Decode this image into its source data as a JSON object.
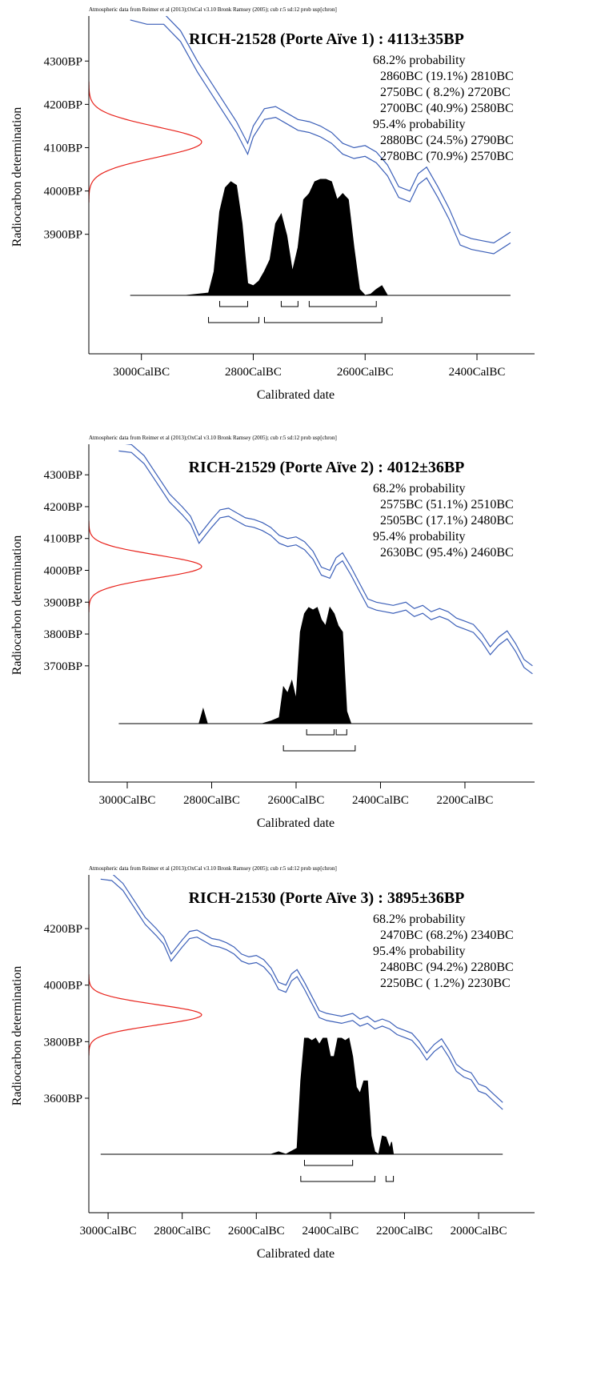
{
  "chart_data": [
    {
      "type": "calibration",
      "note": "Atmospheric data from Reimer et al (2013);OxCal v3.10 Bronk Ramsey (2005); cub r:5 sd:12 prob usp[chron]",
      "title": "RICH-21528 (Porte Aïve 1) : 4113±35BP",
      "xlabel": "Calibrated date",
      "ylabel": "Radiocarbon determination",
      "xlim": [
        3094,
        2297
      ],
      "ylim": [
        3624,
        4404
      ],
      "xticks": [
        {
          "value": 3000,
          "label": "3000CalBC"
        },
        {
          "value": 2800,
          "label": "2800CalBC"
        },
        {
          "value": 2600,
          "label": "2600CalBC"
        },
        {
          "value": 2400,
          "label": "2400CalBC"
        }
      ],
      "yticks": [
        {
          "value": 4300,
          "label": "4300BP"
        },
        {
          "value": 4200,
          "label": "4200BP"
        },
        {
          "value": 4100,
          "label": "4100BP"
        },
        {
          "value": 4000,
          "label": "4000BP"
        },
        {
          "value": 3900,
          "label": "3900BP"
        }
      ],
      "measurement": {
        "mean": 4113,
        "error": 35,
        "color": "#e8231c"
      },
      "curve": {
        "color": "#3b5fb8",
        "x": [
          3020,
          2990,
          2960,
          2930,
          2900,
          2870,
          2850,
          2830,
          2810,
          2800,
          2780,
          2760,
          2740,
          2720,
          2700,
          2680,
          2660,
          2640,
          2620,
          2600,
          2580,
          2560,
          2540,
          2520,
          2505,
          2490,
          2470,
          2450,
          2430,
          2410,
          2390,
          2370,
          2340
        ],
        "upper": [
          4420,
          4410,
          4410,
          4370,
          4300,
          4240,
          4200,
          4160,
          4110,
          4150,
          4190,
          4195,
          4180,
          4165,
          4160,
          4150,
          4135,
          4110,
          4100,
          4105,
          4090,
          4060,
          4010,
          4000,
          4040,
          4055,
          4010,
          3960,
          3900,
          3890,
          3885,
          3880,
          3905
        ],
        "lower": [
          4395,
          4385,
          4385,
          4345,
          4275,
          4215,
          4175,
          4135,
          4085,
          4125,
          4165,
          4170,
          4155,
          4140,
          4135,
          4125,
          4110,
          4085,
          4075,
          4080,
          4065,
          4035,
          3985,
          3975,
          4015,
          4030,
          3985,
          3935,
          3875,
          3865,
          3860,
          3855,
          3880
        ]
      },
      "distribution": {
        "color": "#000000",
        "x": [
          3020,
          2920,
          2880,
          2870,
          2860,
          2850,
          2840,
          2830,
          2820,
          2810,
          2800,
          2790,
          2780,
          2770,
          2760,
          2750,
          2740,
          2730,
          2720,
          2710,
          2700,
          2690,
          2680,
          2670,
          2660,
          2650,
          2640,
          2630,
          2620,
          2610,
          2600,
          2590,
          2580,
          2570,
          2560,
          2340
        ],
        "values": [
          0,
          0,
          2,
          20,
          70,
          90,
          95,
          92,
          60,
          10,
          8,
          12,
          20,
          30,
          60,
          68,
          50,
          20,
          40,
          80,
          85,
          95,
          97,
          97,
          95,
          80,
          85,
          80,
          40,
          5,
          0,
          1,
          5,
          8,
          0,
          0
        ]
      },
      "ranges": [
        {
          "label": "68.2% probability",
          "items": [
            {
              "text": "2860BC (19.1%) 2810BC",
              "from": 2860,
              "to": 2810
            },
            {
              "text": "2750BC ( 8.2%) 2720BC",
              "from": 2750,
              "to": 2720
            },
            {
              "text": "2700BC (40.9%) 2580BC",
              "from": 2700,
              "to": 2580
            }
          ]
        },
        {
          "label": "95.4% probability",
          "items": [
            {
              "text": "2880BC (24.5%) 2790BC",
              "from": 2880,
              "to": 2790
            },
            {
              "text": "2780BC (70.9%) 2570BC",
              "from": 2780,
              "to": 2570
            }
          ]
        }
      ]
    },
    {
      "type": "calibration",
      "note": "Atmospheric data from Reimer et al (2013);OxCal v3.10 Bronk Ramsey (2005); cub r:5 sd:12 prob usp[chron]",
      "title": "RICH-21529 (Porte Aïve 2) : 4012±36BP",
      "xlabel": "Calibrated date",
      "ylabel": "Radiocarbon determination",
      "xlim": [
        3091,
        2035
      ],
      "ylim": [
        3335,
        4396
      ],
      "xticks": [
        {
          "value": 3000,
          "label": "3000CalBC"
        },
        {
          "value": 2800,
          "label": "2800CalBC"
        },
        {
          "value": 2600,
          "label": "2600CalBC"
        },
        {
          "value": 2400,
          "label": "2400CalBC"
        },
        {
          "value": 2200,
          "label": "2200CalBC"
        }
      ],
      "yticks": [
        {
          "value": 4300,
          "label": "4300BP"
        },
        {
          "value": 4200,
          "label": "4200BP"
        },
        {
          "value": 4100,
          "label": "4100BP"
        },
        {
          "value": 4000,
          "label": "4000BP"
        },
        {
          "value": 3900,
          "label": "3900BP"
        },
        {
          "value": 3800,
          "label": "3800BP"
        },
        {
          "value": 3700,
          "label": "3700BP"
        }
      ],
      "measurement": {
        "mean": 4012,
        "error": 36,
        "color": "#e8231c"
      },
      "curve": {
        "color": "#3b5fb8",
        "x": [
          3020,
          2990,
          2960,
          2930,
          2900,
          2870,
          2850,
          2830,
          2800,
          2780,
          2760,
          2740,
          2720,
          2700,
          2680,
          2660,
          2640,
          2620,
          2600,
          2580,
          2560,
          2540,
          2520,
          2505,
          2490,
          2470,
          2450,
          2430,
          2410,
          2390,
          2370,
          2340,
          2320,
          2300,
          2280,
          2260,
          2240,
          2220,
          2200,
          2180,
          2160,
          2140,
          2120,
          2100,
          2080,
          2060,
          2040
        ],
        "upper": [
          4400,
          4395,
          4360,
          4300,
          4240,
          4200,
          4170,
          4110,
          4160,
          4190,
          4195,
          4180,
          4165,
          4160,
          4150,
          4135,
          4110,
          4100,
          4105,
          4090,
          4060,
          4010,
          4000,
          4040,
          4055,
          4010,
          3960,
          3910,
          3900,
          3895,
          3890,
          3900,
          3880,
          3890,
          3870,
          3880,
          3870,
          3850,
          3840,
          3830,
          3800,
          3760,
          3790,
          3810,
          3770,
          3720,
          3700
        ],
        "lower": [
          4375,
          4370,
          4335,
          4275,
          4215,
          4175,
          4145,
          4085,
          4135,
          4165,
          4170,
          4155,
          4140,
          4135,
          4125,
          4110,
          4085,
          4075,
          4080,
          4065,
          4035,
          3985,
          3975,
          4015,
          4030,
          3985,
          3935,
          3885,
          3875,
          3870,
          3865,
          3875,
          3855,
          3865,
          3845,
          3855,
          3845,
          3825,
          3815,
          3805,
          3775,
          3735,
          3765,
          3785,
          3745,
          3695,
          3675
        ]
      },
      "distribution": {
        "color": "#000000",
        "x": [
          3020,
          2830,
          2820,
          2810,
          2680,
          2660,
          2640,
          2630,
          2620,
          2610,
          2600,
          2590,
          2580,
          2570,
          2560,
          2550,
          2540,
          2530,
          2520,
          2510,
          2500,
          2490,
          2480,
          2470,
          2040
        ],
        "values": [
          0,
          0,
          12,
          0,
          0,
          2,
          5,
          30,
          25,
          35,
          20,
          75,
          90,
          95,
          93,
          95,
          85,
          80,
          95,
          90,
          80,
          75,
          10,
          0,
          0
        ]
      },
      "ranges": [
        {
          "label": "68.2% probability",
          "items": [
            {
              "text": "2575BC (51.1%) 2510BC",
              "from": 2575,
              "to": 2510
            },
            {
              "text": "2505BC (17.1%) 2480BC",
              "from": 2505,
              "to": 2480
            }
          ]
        },
        {
          "label": "95.4% probability",
          "items": [
            {
              "text": "2630BC (95.4%) 2460BC",
              "from": 2630,
              "to": 2460
            }
          ]
        }
      ]
    },
    {
      "type": "calibration",
      "note": "Atmospheric data from Reimer et al (2013);OxCal v3.10 Bronk Ramsey (2005); cub r:5 sd:12 prob usp[chron]",
      "title": "RICH-21530 (Porte Aïve 3) : 3895±36BP",
      "xlabel": "Calibrated date",
      "ylabel": "Radiocarbon determination",
      "xlim": [
        3052,
        1849
      ],
      "ylim": [
        3195,
        4390
      ],
      "xticks": [
        {
          "value": 3000,
          "label": "3000CalBC"
        },
        {
          "value": 2800,
          "label": "2800CalBC"
        },
        {
          "value": 2600,
          "label": "2600CalBC"
        },
        {
          "value": 2400,
          "label": "2400CalBC"
        },
        {
          "value": 2200,
          "label": "2200CalBC"
        },
        {
          "value": 2000,
          "label": "2000CalBC"
        }
      ],
      "yticks": [
        {
          "value": 4200,
          "label": "4200BP"
        },
        {
          "value": 4000,
          "label": "4000BP"
        },
        {
          "value": 3800,
          "label": "3800BP"
        },
        {
          "value": 3600,
          "label": "3600BP"
        }
      ],
      "measurement": {
        "mean": 3895,
        "error": 36,
        "color": "#e8231c"
      },
      "curve": {
        "color": "#3b5fb8",
        "x": [
          3020,
          2990,
          2960,
          2930,
          2900,
          2870,
          2850,
          2830,
          2800,
          2780,
          2760,
          2740,
          2720,
          2700,
          2680,
          2660,
          2640,
          2620,
          2600,
          2580,
          2560,
          2540,
          2520,
          2505,
          2490,
          2470,
          2450,
          2430,
          2410,
          2390,
          2370,
          2340,
          2320,
          2300,
          2280,
          2260,
          2240,
          2220,
          2200,
          2180,
          2160,
          2140,
          2120,
          2100,
          2080,
          2060,
          2040,
          2020,
          2000,
          1980,
          1960,
          1935
        ],
        "upper": [
          4400,
          4395,
          4360,
          4300,
          4240,
          4200,
          4170,
          4110,
          4160,
          4190,
          4195,
          4180,
          4165,
          4160,
          4150,
          4135,
          4110,
          4100,
          4105,
          4090,
          4060,
          4010,
          4000,
          4040,
          4055,
          4010,
          3960,
          3910,
          3900,
          3895,
          3890,
          3900,
          3880,
          3890,
          3870,
          3880,
          3870,
          3850,
          3840,
          3830,
          3800,
          3760,
          3790,
          3810,
          3770,
          3720,
          3700,
          3690,
          3650,
          3640,
          3615,
          3585
        ],
        "lower": [
          4375,
          4370,
          4335,
          4275,
          4215,
          4175,
          4145,
          4085,
          4135,
          4165,
          4170,
          4155,
          4140,
          4135,
          4125,
          4110,
          4085,
          4075,
          4080,
          4065,
          4035,
          3985,
          3975,
          4015,
          4030,
          3985,
          3935,
          3885,
          3875,
          3870,
          3865,
          3875,
          3855,
          3865,
          3845,
          3855,
          3845,
          3825,
          3815,
          3805,
          3775,
          3735,
          3765,
          3785,
          3745,
          3695,
          3675,
          3665,
          3625,
          3615,
          3590,
          3560
        ]
      },
      "distribution": {
        "color": "#000000",
        "x": [
          3020,
          2560,
          2540,
          2520,
          2490,
          2480,
          2470,
          2460,
          2450,
          2440,
          2430,
          2420,
          2410,
          2400,
          2390,
          2380,
          2370,
          2360,
          2350,
          2340,
          2330,
          2320,
          2310,
          2300,
          2290,
          2280,
          2270,
          2260,
          2250,
          2240,
          2235,
          2230,
          2220,
          1935
        ],
        "values": [
          0,
          0,
          2,
          0,
          5,
          60,
          95,
          95,
          93,
          95,
          90,
          95,
          95,
          80,
          80,
          95,
          95,
          93,
          95,
          80,
          55,
          50,
          60,
          60,
          15,
          2,
          0,
          15,
          14,
          5,
          10,
          0,
          0,
          0
        ]
      },
      "ranges": [
        {
          "label": "68.2% probability",
          "items": [
            {
              "text": "2470BC (68.2%) 2340BC",
              "from": 2470,
              "to": 2340
            }
          ]
        },
        {
          "label": "95.4% probability",
          "items": [
            {
              "text": "2480BC (94.2%) 2280BC",
              "from": 2480,
              "to": 2280
            },
            {
              "text": "2250BC ( 1.2%) 2230BC",
              "from": 2250,
              "to": 2230
            }
          ]
        }
      ]
    }
  ]
}
